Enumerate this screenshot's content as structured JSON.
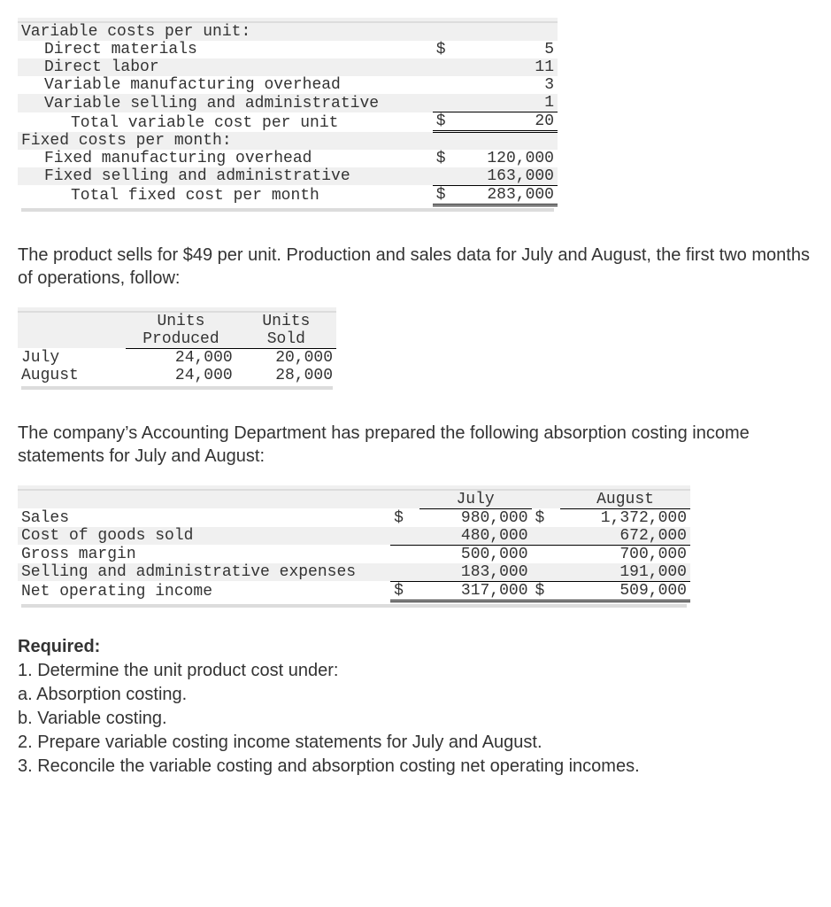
{
  "costs_table": {
    "heading_variable": "Variable costs per unit:",
    "rows_variable": [
      {
        "label": "Direct materials",
        "sym": "$",
        "value": "5"
      },
      {
        "label": "Direct labor",
        "sym": "",
        "value": "11"
      },
      {
        "label": "Variable manufacturing overhead",
        "sym": "",
        "value": "3"
      },
      {
        "label": "Variable selling and administrative",
        "sym": "",
        "value": "1"
      }
    ],
    "total_variable": {
      "label": "Total variable cost per unit",
      "sym": "$",
      "value": "20"
    },
    "heading_fixed": "Fixed costs per month:",
    "rows_fixed": [
      {
        "label": "Fixed manufacturing overhead",
        "sym": "$",
        "value": "120,000"
      },
      {
        "label": "Fixed selling and administrative",
        "sym": "",
        "value": "163,000"
      }
    ],
    "total_fixed": {
      "label": "Total fixed cost per month",
      "sym": "$",
      "value": "283,000"
    }
  },
  "para1": "The product sells for $49 per unit. Production and sales data for July and August, the first two months of operations, follow:",
  "units_table": {
    "col1_line1": "Units",
    "col1_line2": "Produced",
    "col2_line1": "Units",
    "col2_line2": "Sold",
    "rows": [
      {
        "label": "July",
        "produced": "24,000",
        "sold": "20,000"
      },
      {
        "label": "August",
        "produced": "24,000",
        "sold": "28,000"
      }
    ]
  },
  "para2": "The company’s Accounting Department has prepared the following absorption costing income statements for July and August:",
  "income_table": {
    "col1": "July",
    "col2": "August",
    "rows": [
      {
        "label": "Sales",
        "j_sym": "$",
        "j": "980,000",
        "a_sym": "$",
        "a": "1,372,000",
        "border": ""
      },
      {
        "label": "Cost of goods sold",
        "j_sym": "",
        "j": "480,000",
        "a_sym": "",
        "a": "672,000",
        "border": "under"
      },
      {
        "label": "Gross margin",
        "j_sym": "",
        "j": "500,000",
        "a_sym": "",
        "a": "700,000",
        "border": ""
      },
      {
        "label": "Selling and administrative expenses",
        "j_sym": "",
        "j": "183,000",
        "a_sym": "",
        "a": "191,000",
        "border": "under"
      },
      {
        "label": "Net operating income",
        "j_sym": "$",
        "j": "317,000",
        "a_sym": "$",
        "a": "509,000",
        "border": "dblunder"
      }
    ]
  },
  "required": {
    "heading": "Required:",
    "lines": [
      "1. Determine the unit product cost under:",
      "a. Absorption costing.",
      "b. Variable costing.",
      "2. Prepare variable costing income statements for July and August.",
      "3. Reconcile the variable costing and absorption costing net operating incomes."
    ]
  }
}
